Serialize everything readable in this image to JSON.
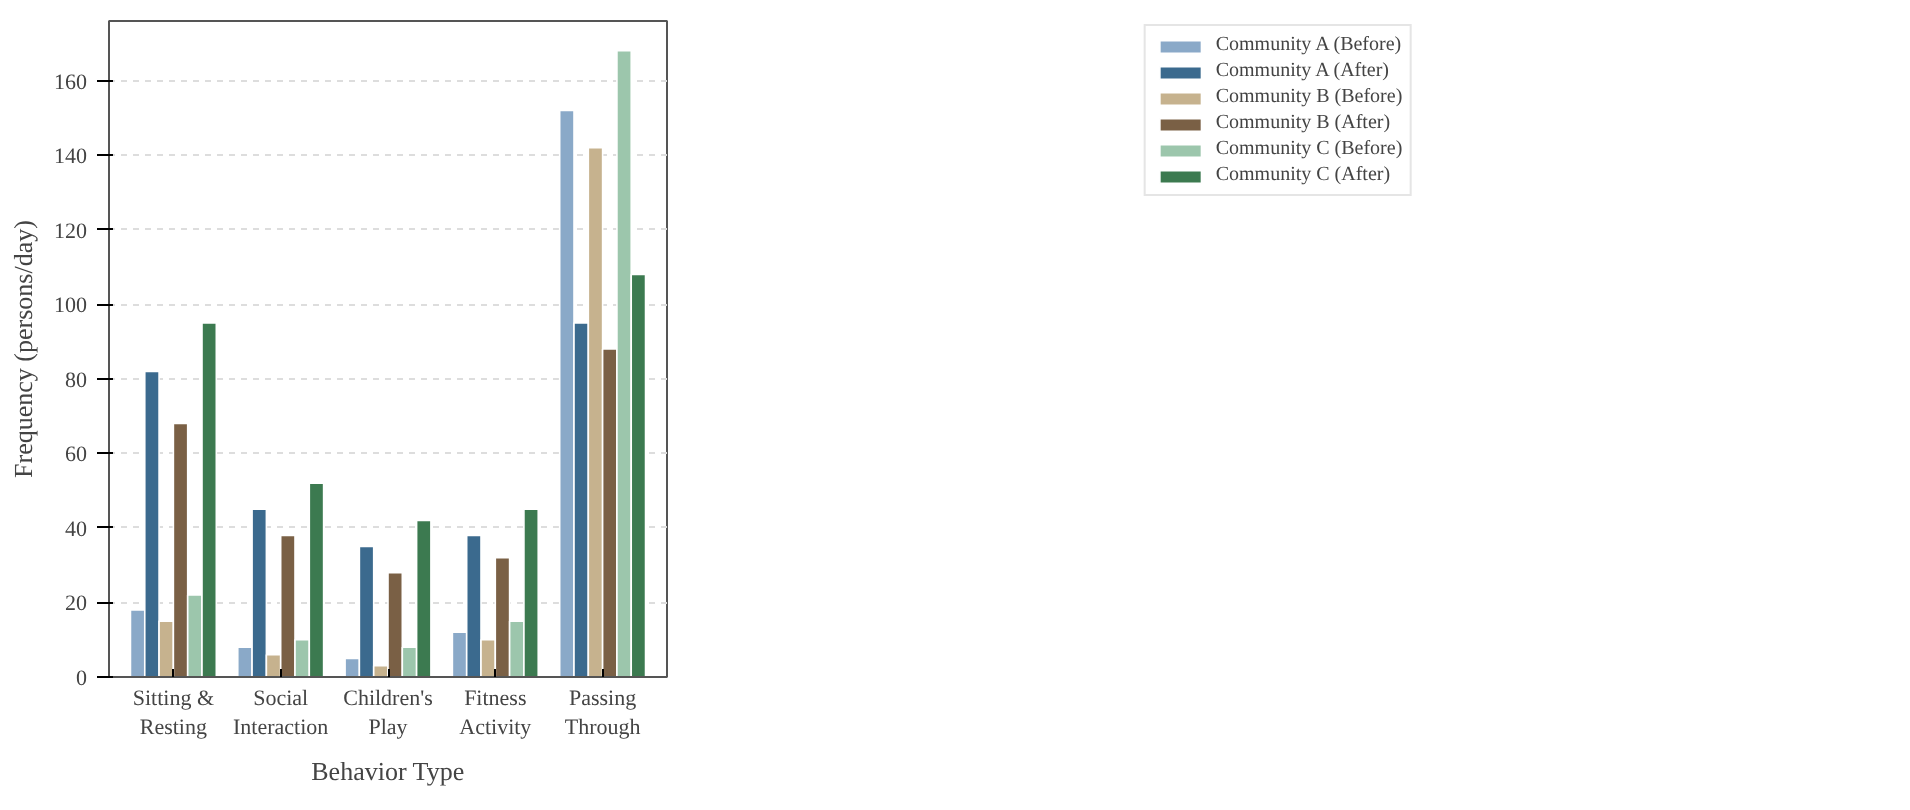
{
  "chart_data": {
    "type": "bar",
    "xlabel": "Behavior Type",
    "ylabel": "Frequency (persons/day)",
    "categories": [
      "Sitting &\nResting",
      "Social\nInteraction",
      "Children's\nPlay",
      "Fitness\nActivity",
      "Passing\nThrough"
    ],
    "series": [
      {
        "name": "Community A (Before)",
        "color": "#8aa9c8",
        "values": [
          18,
          8,
          5,
          12,
          152
        ]
      },
      {
        "name": "Community A (After)",
        "color": "#3b6a8e",
        "values": [
          82,
          45,
          35,
          38,
          95
        ]
      },
      {
        "name": "Community B (Before)",
        "color": "#c6b28e",
        "values": [
          15,
          6,
          3,
          10,
          142
        ]
      },
      {
        "name": "Community B (After)",
        "color": "#7a6045",
        "values": [
          68,
          38,
          28,
          32,
          88
        ]
      },
      {
        "name": "Community C (Before)",
        "color": "#9cc6ac",
        "values": [
          22,
          10,
          8,
          15,
          168
        ]
      },
      {
        "name": "Community C (After)",
        "color": "#3c7a50",
        "values": [
          95,
          52,
          42,
          45,
          108
        ]
      }
    ],
    "ylim": [
      0,
      176
    ],
    "yticks": [
      0,
      20,
      40,
      60,
      80,
      100,
      120,
      140,
      160
    ],
    "grid": "y",
    "legend": "top right"
  }
}
